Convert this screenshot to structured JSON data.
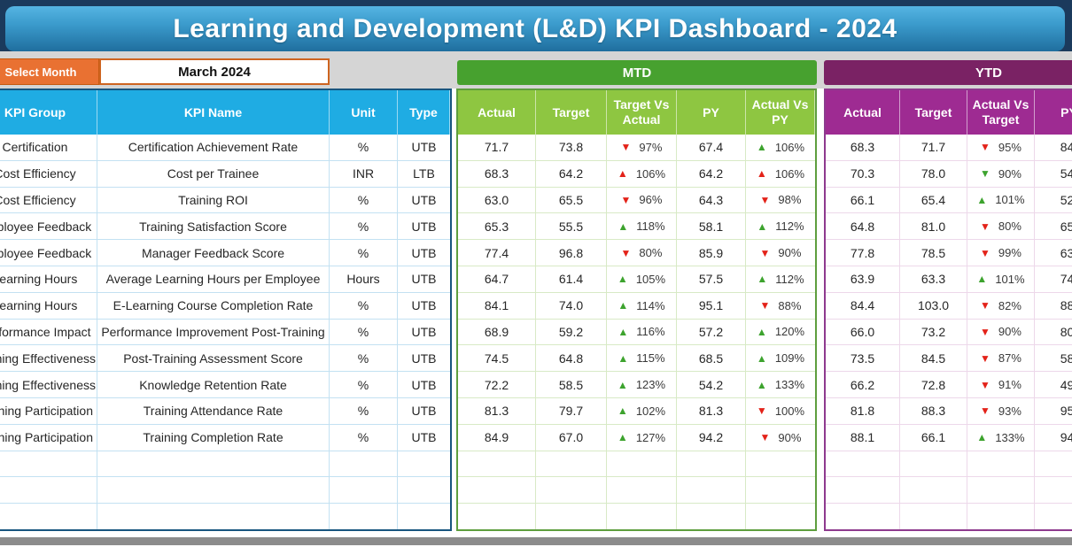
{
  "title": "Learning and Development (L&D) KPI Dashboard - 2024",
  "month_selector": {
    "label": "Select Month",
    "value": "March 2024"
  },
  "sections": {
    "mtd_label": "MTD",
    "ytd_label": "YTD"
  },
  "table": {
    "info_headers": [
      "KPI Group",
      "KPI Name",
      "Unit",
      "Type"
    ],
    "mtd_headers": [
      "Actual",
      "Target",
      "Target Vs Actual",
      "PY",
      "Actual Vs PY"
    ],
    "ytd_headers": [
      "Actual",
      "Target",
      "Actual Vs Target",
      "PY"
    ],
    "empty_row_count": 3,
    "rows": [
      {
        "group": "Certification",
        "name": "Certification Achievement Rate",
        "unit": "%",
        "type": "UTB",
        "mtd": {
          "actual": "71.7",
          "target": "73.8",
          "tva": {
            "dir": "down",
            "color": "red",
            "value": "97%"
          },
          "py": "67.4",
          "avpy": {
            "dir": "up",
            "color": "green",
            "value": "106%"
          }
        },
        "ytd": {
          "actual": "68.3",
          "target": "71.7",
          "avt": {
            "dir": "down",
            "color": "red",
            "value": "95%"
          },
          "py": "84."
        }
      },
      {
        "group": "Cost Efficiency",
        "name": "Cost per Trainee",
        "unit": "INR",
        "type": "LTB",
        "mtd": {
          "actual": "68.3",
          "target": "64.2",
          "tva": {
            "dir": "up",
            "color": "red",
            "value": "106%"
          },
          "py": "64.2",
          "avpy": {
            "dir": "up",
            "color": "red",
            "value": "106%"
          }
        },
        "ytd": {
          "actual": "70.3",
          "target": "78.0",
          "avt": {
            "dir": "down",
            "color": "green",
            "value": "90%"
          },
          "py": "54."
        }
      },
      {
        "group": "Cost Efficiency",
        "name": "Training ROI",
        "unit": "%",
        "type": "UTB",
        "mtd": {
          "actual": "63.0",
          "target": "65.5",
          "tva": {
            "dir": "down",
            "color": "red",
            "value": "96%"
          },
          "py": "64.3",
          "avpy": {
            "dir": "down",
            "color": "red",
            "value": "98%"
          }
        },
        "ytd": {
          "actual": "66.1",
          "target": "65.4",
          "avt": {
            "dir": "up",
            "color": "green",
            "value": "101%"
          },
          "py": "52."
        }
      },
      {
        "group": "Employee Feedback",
        "name": "Training Satisfaction Score",
        "unit": "%",
        "type": "UTB",
        "mtd": {
          "actual": "65.3",
          "target": "55.5",
          "tva": {
            "dir": "up",
            "color": "green",
            "value": "118%"
          },
          "py": "58.1",
          "avpy": {
            "dir": "up",
            "color": "green",
            "value": "112%"
          }
        },
        "ytd": {
          "actual": "64.8",
          "target": "81.0",
          "avt": {
            "dir": "down",
            "color": "red",
            "value": "80%"
          },
          "py": "65."
        }
      },
      {
        "group": "Employee Feedback",
        "name": "Manager Feedback Score",
        "unit": "%",
        "type": "UTB",
        "mtd": {
          "actual": "77.4",
          "target": "96.8",
          "tva": {
            "dir": "down",
            "color": "red",
            "value": "80%"
          },
          "py": "85.9",
          "avpy": {
            "dir": "down",
            "color": "red",
            "value": "90%"
          }
        },
        "ytd": {
          "actual": "77.8",
          "target": "78.5",
          "avt": {
            "dir": "down",
            "color": "red",
            "value": "99%"
          },
          "py": "63."
        }
      },
      {
        "group": "Learning Hours",
        "name": "Average Learning Hours per Employee",
        "unit": "Hours",
        "type": "UTB",
        "mtd": {
          "actual": "64.7",
          "target": "61.4",
          "tva": {
            "dir": "up",
            "color": "green",
            "value": "105%"
          },
          "py": "57.5",
          "avpy": {
            "dir": "up",
            "color": "green",
            "value": "112%"
          }
        },
        "ytd": {
          "actual": "63.9",
          "target": "63.3",
          "avt": {
            "dir": "up",
            "color": "green",
            "value": "101%"
          },
          "py": "74."
        }
      },
      {
        "group": "Learning Hours",
        "name": "E-Learning Course Completion Rate",
        "unit": "%",
        "type": "UTB",
        "mtd": {
          "actual": "84.1",
          "target": "74.0",
          "tva": {
            "dir": "up",
            "color": "green",
            "value": "114%"
          },
          "py": "95.1",
          "avpy": {
            "dir": "down",
            "color": "red",
            "value": "88%"
          }
        },
        "ytd": {
          "actual": "84.4",
          "target": "103.0",
          "avt": {
            "dir": "down",
            "color": "red",
            "value": "82%"
          },
          "py": "88."
        }
      },
      {
        "group": "Performance Impact",
        "name": "Performance Improvement Post-Training",
        "unit": "%",
        "type": "UTB",
        "mtd": {
          "actual": "68.9",
          "target": "59.2",
          "tva": {
            "dir": "up",
            "color": "green",
            "value": "116%"
          },
          "py": "57.2",
          "avpy": {
            "dir": "up",
            "color": "green",
            "value": "120%"
          }
        },
        "ytd": {
          "actual": "66.0",
          "target": "73.2",
          "avt": {
            "dir": "down",
            "color": "red",
            "value": "90%"
          },
          "py": "80."
        }
      },
      {
        "group": "Training Effectiveness",
        "name": "Post-Training Assessment Score",
        "unit": "%",
        "type": "UTB",
        "mtd": {
          "actual": "74.5",
          "target": "64.8",
          "tva": {
            "dir": "up",
            "color": "green",
            "value": "115%"
          },
          "py": "68.5",
          "avpy": {
            "dir": "up",
            "color": "green",
            "value": "109%"
          }
        },
        "ytd": {
          "actual": "73.5",
          "target": "84.5",
          "avt": {
            "dir": "down",
            "color": "red",
            "value": "87%"
          },
          "py": "58."
        }
      },
      {
        "group": "Training Effectiveness",
        "name": "Knowledge Retention Rate",
        "unit": "%",
        "type": "UTB",
        "mtd": {
          "actual": "72.2",
          "target": "58.5",
          "tva": {
            "dir": "up",
            "color": "green",
            "value": "123%"
          },
          "py": "54.2",
          "avpy": {
            "dir": "up",
            "color": "green",
            "value": "133%"
          }
        },
        "ytd": {
          "actual": "66.2",
          "target": "72.8",
          "avt": {
            "dir": "down",
            "color": "red",
            "value": "91%"
          },
          "py": "49."
        }
      },
      {
        "group": "Training Participation",
        "name": "Training Attendance Rate",
        "unit": "%",
        "type": "UTB",
        "mtd": {
          "actual": "81.3",
          "target": "79.7",
          "tva": {
            "dir": "up",
            "color": "green",
            "value": "102%"
          },
          "py": "81.3",
          "avpy": {
            "dir": "down",
            "color": "red",
            "value": "100%"
          }
        },
        "ytd": {
          "actual": "81.8",
          "target": "88.3",
          "avt": {
            "dir": "down",
            "color": "red",
            "value": "93%"
          },
          "py": "95."
        }
      },
      {
        "group": "Training Participation",
        "name": "Training Completion Rate",
        "unit": "%",
        "type": "UTB",
        "mtd": {
          "actual": "84.9",
          "target": "67.0",
          "tva": {
            "dir": "up",
            "color": "green",
            "value": "127%"
          },
          "py": "94.2",
          "avpy": {
            "dir": "down",
            "color": "red",
            "value": "90%"
          }
        },
        "ytd": {
          "actual": "88.1",
          "target": "66.1",
          "avt": {
            "dir": "up",
            "color": "green",
            "value": "133%"
          },
          "py": "94."
        }
      }
    ]
  },
  "colors": {
    "header_cyan": "#1FACE3",
    "mtd_banner_green": "#47A12F",
    "mtd_header_green": "#8EC641",
    "ytd_banner_purple": "#7A2264",
    "ytd_header_purple": "#9E2B92",
    "select_month_orange": "#E97132",
    "arrow_up_green": "#3DA32E",
    "arrow_down_red": "#E32219",
    "title_navy": "#1B3A5C"
  }
}
